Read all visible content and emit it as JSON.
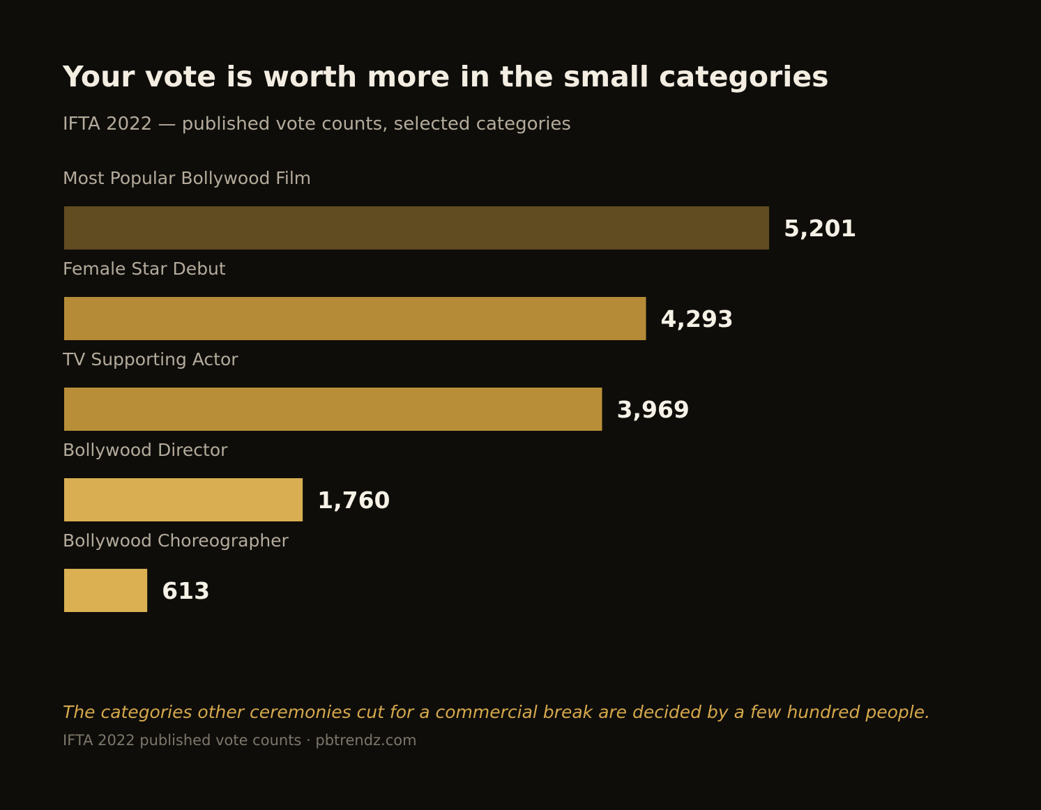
{
  "chart_data": {
    "type": "bar",
    "orientation": "horizontal",
    "title": "Your vote is worth more in the small categories",
    "subtitle": "IFTA 2022 — published vote counts, selected categories",
    "categories": [
      "Most Popular Bollywood Film",
      "Female Star Debut",
      "TV Supporting Actor",
      "Bollywood Director",
      "Bollywood Choreographer"
    ],
    "values": [
      5201,
      4293,
      3969,
      1760,
      613
    ],
    "value_labels": [
      "5,201",
      "4,293",
      "3,969",
      "1,760",
      "613"
    ],
    "bar_colors": [
      "#614b21",
      "#b58b37",
      "#b88f38",
      "#d9ae52",
      "#dab053"
    ],
    "xlim": [
      0,
      5201
    ],
    "grid": false,
    "legend": "none",
    "annotation": "The categories other ceremonies cut for a commercial break are decided by a few hundred people.",
    "source": "IFTA 2022 published vote counts · pbtrendz.com"
  },
  "colors": {
    "background": "#0e0d0a",
    "title": "#f3ede2",
    "muted_text": "#b4ab9c",
    "accent": "#d6a84c"
  }
}
